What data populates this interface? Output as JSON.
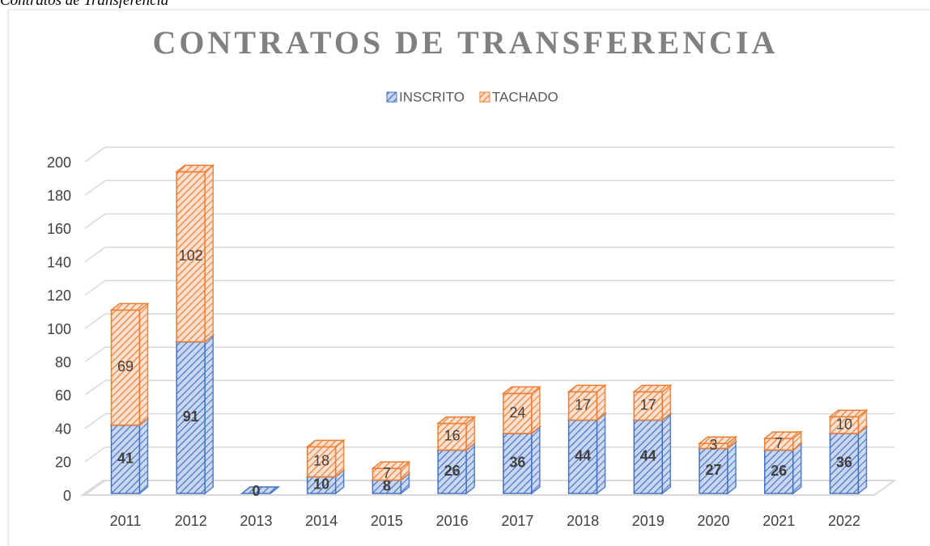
{
  "caption": "Contratos de Transferencia",
  "chart_data": {
    "type": "bar3d_stacked",
    "title": "CONTRATOS DE TRANSFERENCIA",
    "categories": [
      "2011",
      "2012",
      "2013",
      "2014",
      "2015",
      "2016",
      "2017",
      "2018",
      "2019",
      "2020",
      "2021",
      "2022"
    ],
    "series": [
      {
        "name": "INSCRITO",
        "color": "#4472c4",
        "values": [
          41,
          91,
          0,
          10,
          8,
          26,
          36,
          44,
          44,
          27,
          26,
          36
        ]
      },
      {
        "name": "TACHADO",
        "color": "#ed7d31",
        "values": [
          69,
          102,
          null,
          18,
          7,
          16,
          24,
          17,
          17,
          3,
          7,
          10
        ]
      }
    ],
    "ylim": [
      0,
      200
    ],
    "yticks": [
      0,
      20,
      40,
      60,
      80,
      100,
      120,
      140,
      160,
      180,
      200
    ],
    "grid": true,
    "legend": "top"
  }
}
